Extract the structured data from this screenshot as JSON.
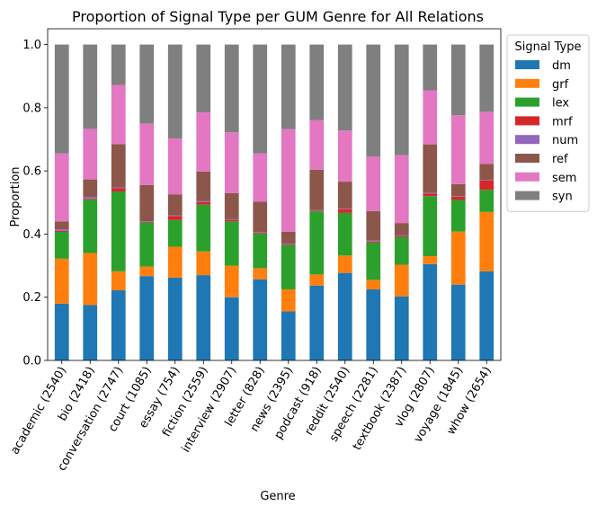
{
  "chart_data": {
    "type": "bar",
    "stacked": true,
    "title": "Proportion of Signal Type per GUM Genre for All Relations",
    "xlabel": "Genre",
    "ylabel": "Proportion",
    "ylim": [
      0,
      1.05
    ],
    "yticks": [
      "0.0",
      "0.2",
      "0.4",
      "0.6",
      "0.8",
      "1.0"
    ],
    "grid": false,
    "legend_title": "Signal Type",
    "legend_position": "outside-right",
    "categories": [
      "academic (2540)",
      "bio (2418)",
      "conversation (2747)",
      "court (1085)",
      "essay (754)",
      "fiction (2559)",
      "interview (2907)",
      "letter (828)",
      "news (2395)",
      "podcast (918)",
      "reddit (2540)",
      "speech (2281)",
      "textbook (2387)",
      "vlog (2807)",
      "voyage (1845)",
      "whow (2654)"
    ],
    "series": [
      {
        "name": "dm",
        "color": "#1f77b4",
        "values": [
          0.18,
          0.175,
          0.222,
          0.267,
          0.262,
          0.27,
          0.2,
          0.257,
          0.155,
          0.237,
          0.277,
          0.225,
          0.203,
          0.305,
          0.24,
          0.282
        ]
      },
      {
        "name": "grf",
        "color": "#ff7f0e",
        "values": [
          0.142,
          0.165,
          0.06,
          0.03,
          0.098,
          0.075,
          0.1,
          0.035,
          0.07,
          0.035,
          0.055,
          0.03,
          0.1,
          0.025,
          0.168,
          0.188
        ]
      },
      {
        "name": "lex",
        "color": "#2ca02c",
        "values": [
          0.085,
          0.17,
          0.253,
          0.14,
          0.085,
          0.148,
          0.14,
          0.11,
          0.14,
          0.2,
          0.135,
          0.118,
          0.088,
          0.19,
          0.1,
          0.07
        ]
      },
      {
        "name": "mrf",
        "color": "#d62728",
        "values": [
          0.003,
          0.003,
          0.01,
          0.002,
          0.012,
          0.008,
          0.005,
          0.003,
          0.002,
          0.002,
          0.012,
          0.003,
          0.003,
          0.008,
          0.01,
          0.03
        ]
      },
      {
        "name": "num",
        "color": "#9467bd",
        "values": [
          0.005,
          0.005,
          0.002,
          0.002,
          0.002,
          0.003,
          0.002,
          0.002,
          0.003,
          0.002,
          0.002,
          0.003,
          0.003,
          0.002,
          0.002,
          0.002
        ]
      },
      {
        "name": "ref",
        "color": "#8c564b",
        "values": [
          0.025,
          0.055,
          0.138,
          0.114,
          0.067,
          0.094,
          0.083,
          0.096,
          0.037,
          0.128,
          0.085,
          0.094,
          0.038,
          0.154,
          0.038,
          0.05
        ]
      },
      {
        "name": "sem",
        "color": "#e377c2",
        "values": [
          0.215,
          0.16,
          0.187,
          0.195,
          0.177,
          0.187,
          0.192,
          0.152,
          0.325,
          0.157,
          0.162,
          0.172,
          0.215,
          0.171,
          0.218,
          0.165
        ]
      },
      {
        "name": "syn",
        "color": "#7f7f7f",
        "values": [
          0.345,
          0.267,
          0.128,
          0.25,
          0.297,
          0.215,
          0.278,
          0.345,
          0.268,
          0.239,
          0.272,
          0.355,
          0.35,
          0.145,
          0.224,
          0.213
        ]
      }
    ]
  }
}
